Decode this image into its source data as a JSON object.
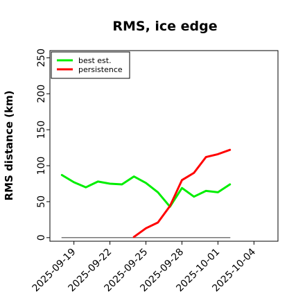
{
  "chart_data": {
    "type": "line",
    "title": "RMS, ice edge",
    "xlabel": "",
    "ylabel": "RMS distance (km)",
    "ylim": [
      -5,
      260
    ],
    "xlim": [
      "2025-09-17",
      "2025-10-06"
    ],
    "yticks": [
      0,
      50,
      100,
      150,
      200,
      250
    ],
    "xticks": [
      "2025-09-19",
      "2025-09-22",
      "2025-09-25",
      "2025-09-28",
      "2025-10-01",
      "2025-10-04"
    ],
    "legend_position": "top-left",
    "grid": false,
    "series": [
      {
        "name": "best est.",
        "color": "#00ee00",
        "x": [
          "2025-09-18",
          "2025-09-19",
          "2025-09-20",
          "2025-09-21",
          "2025-09-22",
          "2025-09-23",
          "2025-09-24",
          "2025-09-25",
          "2025-09-26",
          "2025-09-27",
          "2025-09-28",
          "2025-09-29",
          "2025-09-30",
          "2025-10-01",
          "2025-10-02"
        ],
        "values": [
          87,
          77,
          70,
          78,
          75,
          74,
          85,
          76,
          63,
          43,
          69,
          57,
          65,
          63,
          74
        ]
      },
      {
        "name": "persistence",
        "color": "#ff0000",
        "x": [
          "2025-09-24",
          "2025-09-25",
          "2025-09-26",
          "2025-09-27",
          "2025-09-28",
          "2025-09-29",
          "2025-09-30",
          "2025-10-01",
          "2025-10-02"
        ],
        "values": [
          1,
          13,
          21,
          44,
          80,
          90,
          112,
          116,
          122
        ]
      },
      {
        "color": "#777777",
        "x": [
          "2025-09-18",
          "2025-10-02"
        ],
        "values": [
          0,
          0
        ]
      }
    ]
  }
}
